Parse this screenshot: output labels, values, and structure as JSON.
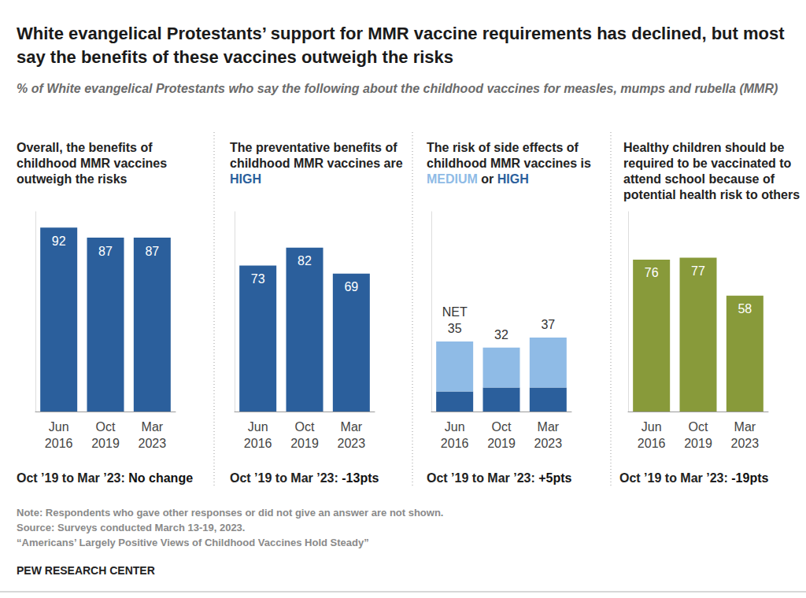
{
  "title": "White evangelical Protestants’ support for MMR vaccine requirements has declined, but most say the benefits of these vaccines outweigh the risks",
  "subtitle": "% of White evangelical Protestants who say the following about the childhood vaccines for measles, mumps and rubella (MMR)",
  "note": "Note: Respondents who gave other responses or did not give an answer are not shown.",
  "source": "Source: Surveys conducted March 13-19, 2023.",
  "report": "“Americans’ Largely Positive Views of Childhood Vaccines Hold Steady”",
  "credit": "PEW RESEARCH CENTER",
  "chart_data": [
    {
      "type": "bar",
      "title": "Overall, the benefits of childhood MMR vaccines outweigh the risks",
      "categories": [
        "Jun 2016",
        "Oct 2019",
        "Mar 2023"
      ],
      "values": [
        92,
        87,
        87
      ],
      "color": "#2b5f9c",
      "ylim": [
        0,
        100
      ],
      "grid": false,
      "data_labels": true,
      "tick_labels": "x",
      "change_label": "Oct ’19 to Mar ’23:",
      "change": "No change"
    },
    {
      "type": "bar",
      "title": "The preventative benefits of childhood MMR vaccines are HIGH",
      "categories": [
        "Jun 2016",
        "Oct 2019",
        "Mar 2023"
      ],
      "series": [
        {
          "name": "HIGH",
          "color": "#2b5f9c",
          "values": [
            73,
            82,
            69
          ]
        }
      ],
      "ylim": [
        0,
        100
      ],
      "grid": false,
      "data_labels": true,
      "tick_labels": "x",
      "change_label": "Oct ’19 to Mar ’23:",
      "change": "-13pts"
    },
    {
      "type": "bar",
      "title": "The risk of side effects of childhood MMR vaccines is MEDIUM or HIGH",
      "categories": [
        "Jun 2016",
        "Oct 2019",
        "Mar 2023"
      ],
      "series": [
        {
          "name": "HIGH",
          "color": "#2b5f9c",
          "values": [
            10,
            12,
            12
          ]
        },
        {
          "name": "MEDIUM",
          "color": "#8fbbe6",
          "values": [
            25,
            20,
            25
          ]
        }
      ],
      "stacked": true,
      "totals": [
        35,
        32,
        37
      ],
      "total_label": "NET",
      "ylim": [
        0,
        100
      ],
      "grid": false,
      "data_labels": false,
      "tick_labels": "x",
      "change_label": "Oct ’19 to Mar ’23:",
      "change": "+5pts"
    },
    {
      "type": "bar",
      "title": "Healthy children should be required to be vaccinated to attend school because of potential health risk to others",
      "categories": [
        "Jun 2016",
        "Oct 2019",
        "Mar 2023"
      ],
      "values": [
        76,
        77,
        58
      ],
      "color": "#889a3a",
      "ylim": [
        0,
        100
      ],
      "grid": false,
      "data_labels": true,
      "tick_labels": "x",
      "change_label": "Oct ’19 to Mar ’23:",
      "change": "-19pts"
    }
  ]
}
